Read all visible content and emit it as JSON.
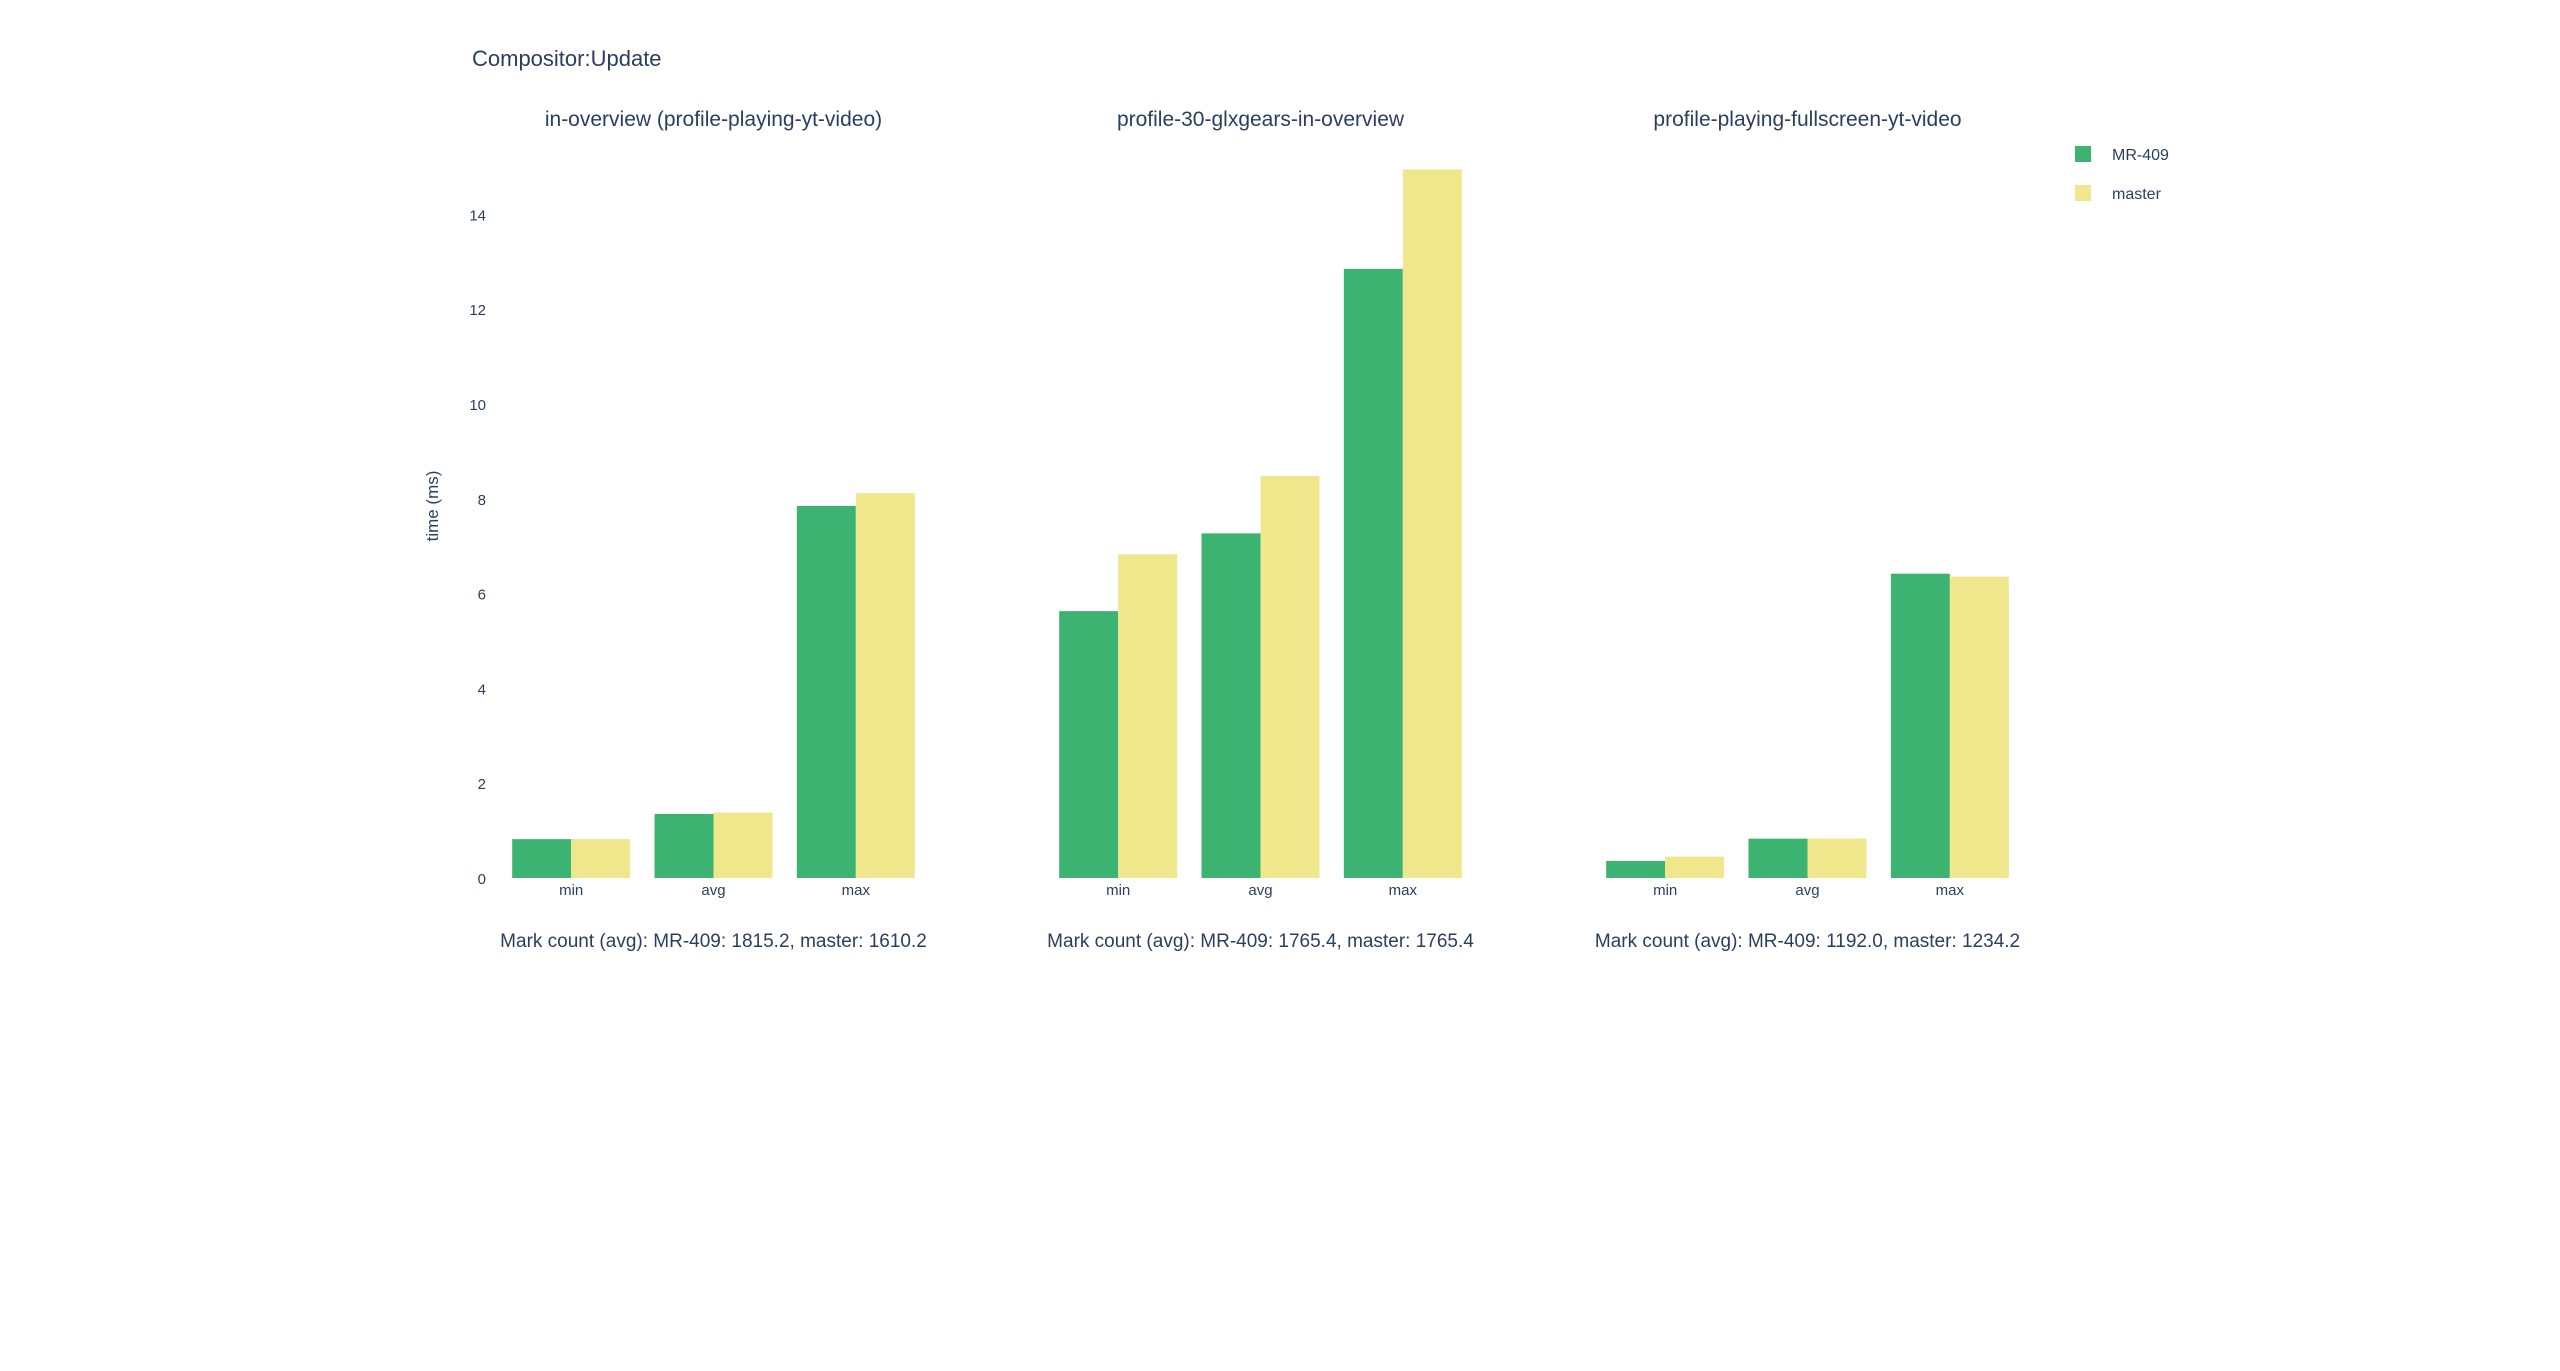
{
  "page": {
    "title": "Compositor:Update",
    "ylabel": "time (ms)"
  },
  "legend": {
    "placement": "top-right",
    "items": [
      {
        "name": "MR-409",
        "color": "#3cb371"
      },
      {
        "name": "master",
        "color": "#f0e68c"
      }
    ]
  },
  "chart_data": [
    {
      "type": "bar",
      "title": "in-overview (profile-playing-yt-video)",
      "categories": [
        "min",
        "avg",
        "max"
      ],
      "series": [
        {
          "name": "MR-409",
          "color": "#3cb371",
          "values": [
            0.82,
            1.35,
            7.85
          ]
        },
        {
          "name": "master",
          "color": "#f0e68c",
          "values": [
            0.82,
            1.38,
            8.12
          ]
        }
      ],
      "ylabel": "time (ms)",
      "ylim": [
        0,
        15
      ],
      "yticks": [
        0,
        2,
        4,
        6,
        8,
        10,
        12,
        14
      ],
      "caption": "Mark count (avg): MR-409: 1815.2, master: 1610.2",
      "grid": false
    },
    {
      "type": "bar",
      "title": "profile-30-glxgears-in-overview",
      "categories": [
        "min",
        "avg",
        "max"
      ],
      "series": [
        {
          "name": "MR-409",
          "color": "#3cb371",
          "values": [
            5.63,
            7.27,
            12.85
          ]
        },
        {
          "name": "master",
          "color": "#f0e68c",
          "values": [
            6.83,
            8.48,
            14.95
          ]
        }
      ],
      "ylim": [
        0,
        15
      ],
      "caption": "Mark count (avg): MR-409: 1765.4, master: 1765.4",
      "grid": false
    },
    {
      "type": "bar",
      "title": "profile-playing-fullscreen-yt-video",
      "categories": [
        "min",
        "avg",
        "max"
      ],
      "series": [
        {
          "name": "MR-409",
          "color": "#3cb371",
          "values": [
            0.36,
            0.83,
            6.42
          ]
        },
        {
          "name": "master",
          "color": "#f0e68c",
          "values": [
            0.45,
            0.83,
            6.36
          ]
        }
      ],
      "ylim": [
        0,
        15
      ],
      "caption": "Mark count (avg): MR-409: 1192.0, master: 1234.2",
      "grid": false
    }
  ]
}
